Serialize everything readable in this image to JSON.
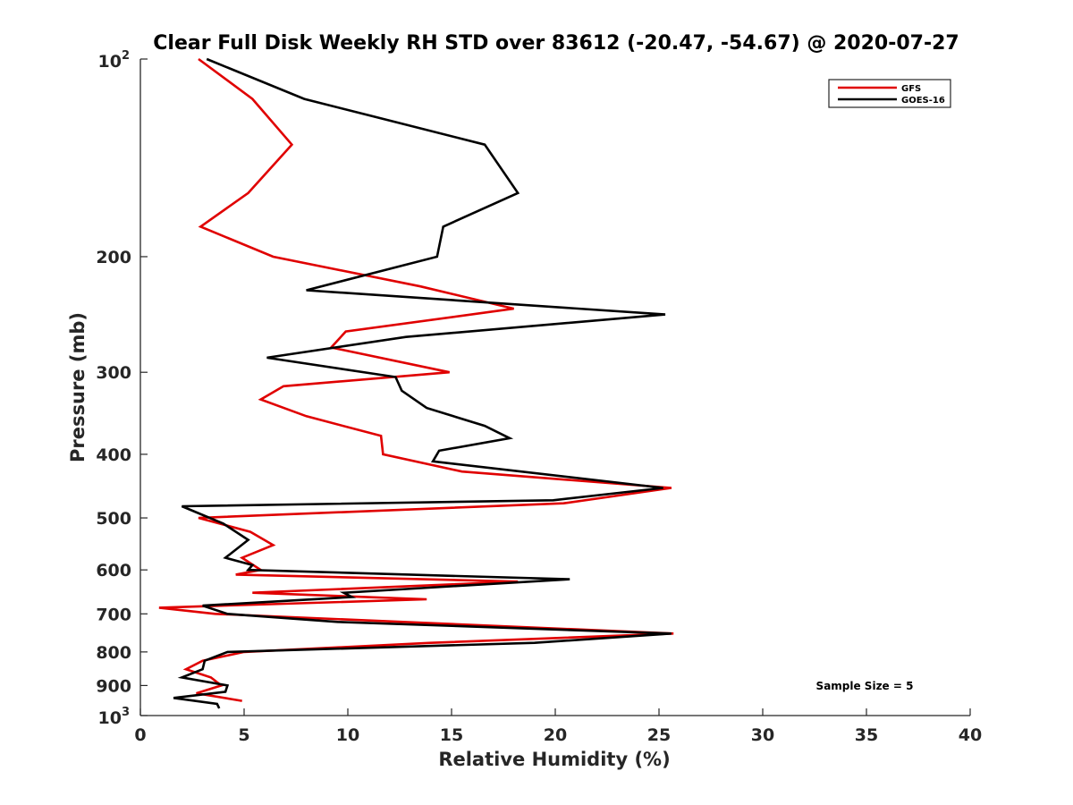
{
  "chart_data": {
    "type": "line",
    "title": "Clear Full Disk Weekly RH STD over 83612 (-20.47, -54.67) @ 2020-07-27",
    "xlabel": "Relative Humidity (%)",
    "ylabel": "Pressure (mb)",
    "xlim": [
      0,
      40
    ],
    "ylim": [
      100,
      1000
    ],
    "y_scale": "log",
    "y_reversed": true,
    "x_ticks": [
      "0",
      "5",
      "10",
      "15",
      "20",
      "25",
      "30",
      "35",
      "40"
    ],
    "y_ticks": [
      {
        "value": 100,
        "base": "10",
        "exp": "2"
      },
      {
        "value": 200,
        "label": "200"
      },
      {
        "value": 300,
        "label": "300"
      },
      {
        "value": 400,
        "label": "400"
      },
      {
        "value": 500,
        "label": "500"
      },
      {
        "value": 600,
        "label": "600"
      },
      {
        "value": 700,
        "label": "700"
      },
      {
        "value": 800,
        "label": "800"
      },
      {
        "value": 900,
        "label": "900"
      },
      {
        "value": 1000,
        "base": "10",
        "exp": "3"
      }
    ],
    "legend": {
      "position": "top-right"
    },
    "grid": false,
    "annotation": "Sample Size = 5",
    "series": [
      {
        "name": "GFS",
        "color": "#e00000",
        "points": [
          [
            2.8,
            100
          ],
          [
            5.4,
            115
          ],
          [
            7.3,
            135
          ],
          [
            5.2,
            160
          ],
          [
            2.9,
            180
          ],
          [
            6.4,
            200
          ],
          [
            13.5,
            222
          ],
          [
            18,
            240
          ],
          [
            9.9,
            260
          ],
          [
            9.2,
            275
          ],
          [
            14.9,
            300
          ],
          [
            6.9,
            315
          ],
          [
            5.8,
            330
          ],
          [
            8,
            350
          ],
          [
            11.6,
            375
          ],
          [
            11.7,
            400
          ],
          [
            15.5,
            425
          ],
          [
            25.6,
            450
          ],
          [
            20.4,
            475
          ],
          [
            2.8,
            500
          ],
          [
            5.3,
            525
          ],
          [
            6.4,
            550
          ],
          [
            4.9,
            575
          ],
          [
            5.8,
            600
          ],
          [
            4.6,
            610
          ],
          [
            18.2,
            625
          ],
          [
            5.4,
            650
          ],
          [
            13.8,
            665
          ],
          [
            0.9,
            685
          ],
          [
            3.6,
            700
          ],
          [
            25.7,
            750
          ],
          [
            14,
            775
          ],
          [
            5,
            800
          ],
          [
            3,
            825
          ],
          [
            2.2,
            850
          ],
          [
            3.4,
            875
          ],
          [
            3.9,
            900
          ],
          [
            2.7,
            925
          ],
          [
            4.9,
            950
          ]
        ]
      },
      {
        "name": "GOES-16",
        "color": "#000000",
        "points": [
          [
            3.2,
            100
          ],
          [
            7.9,
            115
          ],
          [
            16.6,
            135
          ],
          [
            18.2,
            160
          ],
          [
            14.6,
            180
          ],
          [
            14.3,
            200
          ],
          [
            8,
            225
          ],
          [
            25.3,
            245
          ],
          [
            12.8,
            265
          ],
          [
            6.1,
            285
          ],
          [
            12.3,
            305
          ],
          [
            12.6,
            320
          ],
          [
            13.8,
            340
          ],
          [
            16.6,
            362
          ],
          [
            17.8,
            378
          ],
          [
            14.4,
            395
          ],
          [
            14.1,
            410
          ],
          [
            25.2,
            450
          ],
          [
            19.9,
            470
          ],
          [
            2,
            480
          ],
          [
            4,
            510
          ],
          [
            5.2,
            540
          ],
          [
            4.1,
            575
          ],
          [
            5.4,
            590
          ],
          [
            5.2,
            600
          ],
          [
            20.7,
            620
          ],
          [
            9.8,
            650
          ],
          [
            10.2,
            660
          ],
          [
            3,
            680
          ],
          [
            4.2,
            700
          ],
          [
            9.5,
            720
          ],
          [
            25.6,
            750
          ],
          [
            19,
            775
          ],
          [
            4.2,
            800
          ],
          [
            3.1,
            825
          ],
          [
            3,
            850
          ],
          [
            2,
            875
          ],
          [
            4.2,
            900
          ],
          [
            4.1,
            920
          ],
          [
            1.6,
            940
          ],
          [
            3.7,
            960
          ],
          [
            3.8,
            975
          ]
        ]
      }
    ]
  }
}
